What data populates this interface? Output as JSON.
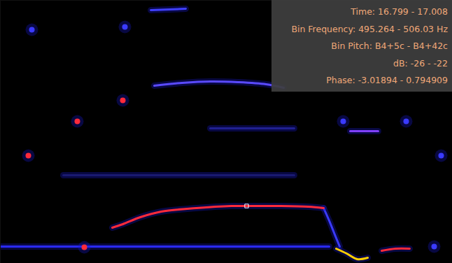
{
  "chart_data": {
    "type": "spectrogram",
    "tick_labels": false,
    "xlim": [
      0,
      646
    ],
    "ylim": [
      0,
      376
    ],
    "tooltip": [
      "Time: 16.799 - 17.008",
      "Bin Frequency: 495.264 - 506.03 Hz",
      "Bin Pitch: B4+5c - B4+42c",
      "dB: -26 - -22",
      "Phase: -3.01894 - 0.794909"
    ],
    "series": [
      {
        "type": "line",
        "color": "#2a2aff",
        "x": [
          0,
          60,
          120,
          180,
          240,
          300,
          360,
          420,
          470
        ],
        "values": [
          24,
          24,
          24,
          24,
          24,
          24,
          24,
          24,
          24
        ]
      },
      {
        "type": "line",
        "color": "#1a1a70",
        "x": [
          90,
          420
        ],
        "values": [
          126,
          126
        ]
      },
      {
        "type": "line",
        "color": "#202090",
        "x": [
          300,
          420
        ],
        "values": [
          193,
          193
        ]
      },
      {
        "type": "line",
        "color": "#8040ff",
        "x": [
          500,
          540
        ],
        "values": [
          189,
          189
        ]
      },
      {
        "type": "line",
        "color": "#5a4aff",
        "x": [
          220,
          260,
          300,
          340,
          380,
          405
        ],
        "values": [
          254,
          258,
          260,
          259,
          256,
          251
        ]
      },
      {
        "type": "line",
        "color": "#4040ff",
        "x": [
          215,
          265
        ],
        "values": [
          362,
          364
        ]
      },
      {
        "type": "line",
        "color": "#3a3aff",
        "x": [
          462,
          470,
          478,
          485
        ],
        "values": [
          79,
          61,
          41,
          24
        ]
      },
      {
        "type": "line",
        "color": "#ff2a3a",
        "x": [
          160,
          175,
          200,
          230,
          280,
          330,
          352,
          400,
          440,
          462
        ],
        "values": [
          51,
          56,
          66,
          74,
          79,
          82,
          82,
          82,
          81,
          79
        ]
      },
      {
        "type": "line",
        "color": "#ffd000",
        "x": [
          480,
          495,
          510,
          525
        ],
        "values": [
          21,
          14,
          6,
          8
        ]
      },
      {
        "type": "line",
        "color": "#ff2a3a",
        "x": [
          545,
          565,
          585
        ],
        "values": [
          18,
          21,
          21
        ]
      },
      {
        "type": "scatter",
        "marker": "circle",
        "color": "#ff2a3a",
        "x": [
          175,
          40,
          110,
          120
        ],
        "values": [
          233,
          154,
          203,
          23
        ]
      },
      {
        "type": "scatter",
        "marker": "circle",
        "color": "#3a3aff",
        "x": [
          45,
          178,
          490,
          580,
          630,
          620
        ],
        "values": [
          334,
          338,
          203,
          203,
          154,
          24
        ]
      },
      {
        "type": "scatter",
        "marker": "square",
        "color": "#ffffff",
        "x": [
          352
        ],
        "values": [
          82
        ]
      }
    ]
  }
}
